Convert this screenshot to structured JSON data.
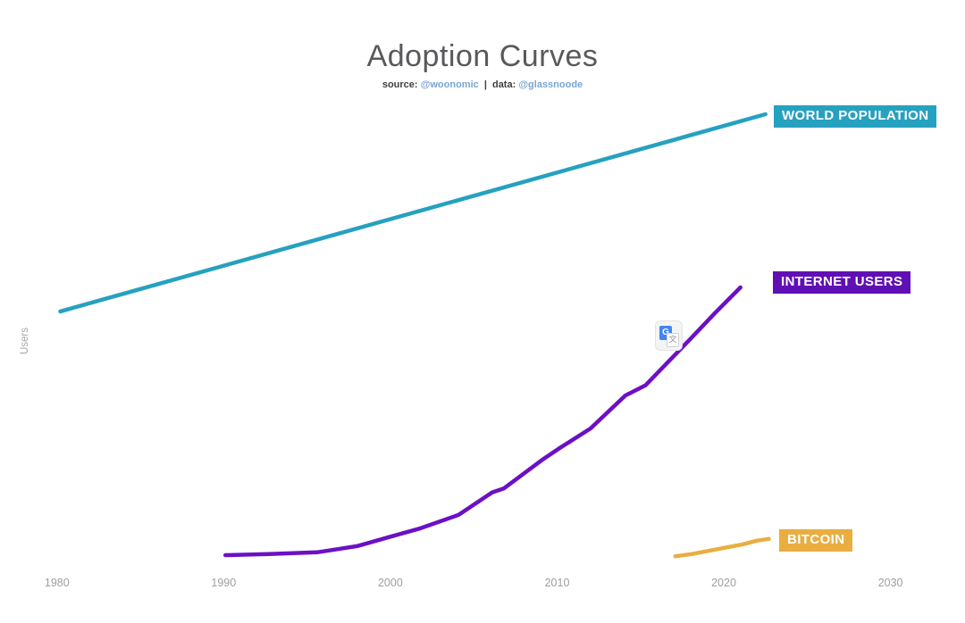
{
  "header": {
    "title": "Adoption Curves",
    "source_label": "source:",
    "source_handle": "@woonomic",
    "separator": "|",
    "data_label": "data:",
    "data_handle": "@glassnoode"
  },
  "colors": {
    "world_population": "#26a1bf",
    "internet_users_line": "#6c10c6",
    "internet_users_label_bg": "#600fb4",
    "bitcoin": "#e9ae3f",
    "title_text": "#58595b",
    "axis_text": "#9e9e9e",
    "handle_link": "#7aa4d6"
  },
  "overlay": {
    "translate_icon_name": "google-translate-icon",
    "translate_g_glyph": "G",
    "translate_char_glyph": "文"
  },
  "chart_data": {
    "type": "line",
    "title": "Adoption Curves",
    "xlabel": "",
    "ylabel": "Users",
    "y_units": "billions of users (axis unlabeled in image)",
    "x_ticks": [
      "1980",
      "1990",
      "2000",
      "2010",
      "2020",
      "2030"
    ],
    "xlim": [
      1977.6,
      2033.4
    ],
    "ylim": [
      0,
      9.4
    ],
    "grid": false,
    "legend_position": "right-edge end-of-line boxed labels",
    "series": [
      {
        "name": "WORLD POPULATION",
        "color": "#26a1bf",
        "points": [
          [
            1980.2,
            4.43
          ],
          [
            2022.5,
            7.95
          ]
        ]
      },
      {
        "name": "INTERNET USERS",
        "color": "#6c10c6",
        "points": [
          [
            1990.1,
            0.08
          ],
          [
            1992.7,
            0.1
          ],
          [
            1995.6,
            0.13
          ],
          [
            1998.0,
            0.24
          ],
          [
            2000.0,
            0.41
          ],
          [
            2001.8,
            0.56
          ],
          [
            2004.1,
            0.8
          ],
          [
            2006.1,
            1.2
          ],
          [
            2006.8,
            1.27
          ],
          [
            2009.1,
            1.78
          ],
          [
            2010.1,
            1.98
          ],
          [
            2012.0,
            2.34
          ],
          [
            2014.1,
            2.93
          ],
          [
            2015.3,
            3.11
          ],
          [
            2016.7,
            3.54
          ],
          [
            2018.0,
            3.94
          ],
          [
            2019.5,
            4.41
          ],
          [
            2021.0,
            4.86
          ]
        ]
      },
      {
        "name": "BITCOIN",
        "color": "#e9ae3f",
        "points": [
          [
            2017.1,
            0.06
          ],
          [
            2018.1,
            0.1
          ],
          [
            2019.5,
            0.18
          ],
          [
            2021.1,
            0.27
          ],
          [
            2022.0,
            0.34
          ],
          [
            2022.7,
            0.37
          ]
        ]
      }
    ]
  }
}
